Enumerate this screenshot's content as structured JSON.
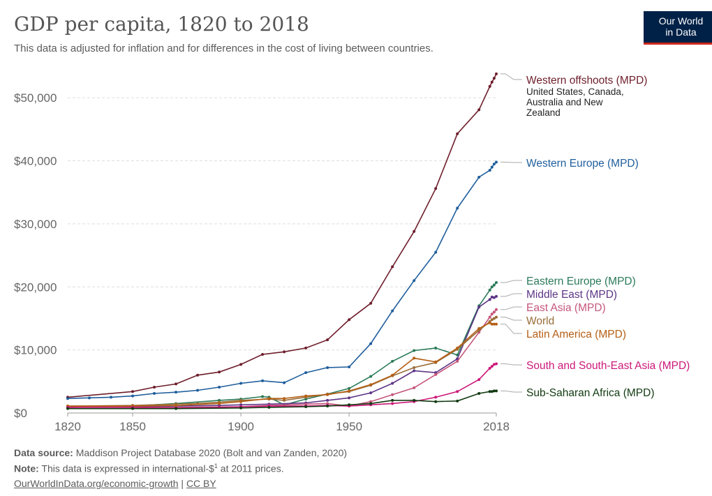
{
  "header": {
    "title": "GDP per capita, 1820 to 2018",
    "subtitle": "This data is adjusted for inflation and for differences in the cost of living between countries."
  },
  "logo": {
    "line1": "Our World",
    "line2": "in Data"
  },
  "footer": {
    "source_label": "Data source:",
    "source_text": "Maddison Project Database 2020 (Bolt and van Zanden, 2020)",
    "note_label": "Note:",
    "note_text_a": "This data is expressed in international-$",
    "note_sup": "1",
    "note_text_b": " at 2011 prices.",
    "link": "OurWorldInData.org/economic-growth",
    "separator": " | ",
    "license": "CC BY"
  },
  "chart_data": {
    "type": "line",
    "xlim": [
      1820,
      2018
    ],
    "ylim": [
      0,
      55000
    ],
    "x_ticks": [
      1820,
      1850,
      1900,
      1950,
      2018
    ],
    "x_tick_labels": [
      "1820",
      "1850",
      "1900",
      "1950",
      "2018"
    ],
    "y_ticks": [
      0,
      10000,
      20000,
      30000,
      40000,
      50000
    ],
    "y_tick_labels": [
      "$0",
      "$10,000",
      "$20,000",
      "$30,000",
      "$40,000",
      "$50,000"
    ],
    "grid": "horizontal dashed",
    "legend": "right, labels at line ends",
    "series": [
      {
        "name": "Western offshoots (MPD)",
        "sublabel": [
          "United States, Canada,",
          "Australia and New",
          "Zealand"
        ],
        "color": "#6d1e2b",
        "points": [
          [
            1820,
            2500
          ],
          [
            1850,
            3400
          ],
          [
            1860,
            4100
          ],
          [
            1870,
            4600
          ],
          [
            1880,
            6000
          ],
          [
            1890,
            6500
          ],
          [
            1900,
            7700
          ],
          [
            1910,
            9300
          ],
          [
            1920,
            9700
          ],
          [
            1930,
            10300
          ],
          [
            1940,
            11600
          ],
          [
            1950,
            14800
          ],
          [
            1960,
            17400
          ],
          [
            1970,
            23200
          ],
          [
            1980,
            28800
          ],
          [
            1990,
            35600
          ],
          [
            2000,
            44300
          ],
          [
            2010,
            48100
          ],
          [
            2015,
            51800
          ],
          [
            2016,
            52500
          ],
          [
            2017,
            53100
          ],
          [
            2018,
            53800
          ]
        ]
      },
      {
        "name": "Western Europe (MPD)",
        "color": "#1f5e9c",
        "points": [
          [
            1820,
            2300
          ],
          [
            1830,
            2400
          ],
          [
            1840,
            2500
          ],
          [
            1850,
            2700
          ],
          [
            1860,
            3100
          ],
          [
            1870,
            3300
          ],
          [
            1880,
            3600
          ],
          [
            1890,
            4100
          ],
          [
            1900,
            4700
          ],
          [
            1910,
            5100
          ],
          [
            1920,
            4800
          ],
          [
            1930,
            6400
          ],
          [
            1940,
            7200
          ],
          [
            1950,
            7300
          ],
          [
            1960,
            11000
          ],
          [
            1970,
            16200
          ],
          [
            1980,
            21000
          ],
          [
            1990,
            25500
          ],
          [
            2000,
            32500
          ],
          [
            2010,
            37400
          ],
          [
            2015,
            38500
          ],
          [
            2016,
            39000
          ],
          [
            2017,
            39500
          ],
          [
            2018,
            39800
          ]
        ]
      },
      {
        "name": "Eastern Europe (MPD)",
        "color": "#2a7a59",
        "points": [
          [
            1820,
            900
          ],
          [
            1850,
            1100
          ],
          [
            1870,
            1500
          ],
          [
            1890,
            2000
          ],
          [
            1900,
            2200
          ],
          [
            1910,
            2600
          ],
          [
            1913,
            2500
          ],
          [
            1920,
            1300
          ],
          [
            1930,
            2200
          ],
          [
            1940,
            3000
          ],
          [
            1950,
            3900
          ],
          [
            1960,
            5800
          ],
          [
            1970,
            8200
          ],
          [
            1980,
            9900
          ],
          [
            1990,
            10300
          ],
          [
            2000,
            9200
          ],
          [
            2010,
            17000
          ],
          [
            2015,
            19500
          ],
          [
            2016,
            20000
          ],
          [
            2017,
            20300
          ],
          [
            2018,
            20700
          ]
        ]
      },
      {
        "name": "Middle East (MPD)",
        "color": "#5d3586",
        "points": [
          [
            1820,
            900
          ],
          [
            1850,
            1000
          ],
          [
            1870,
            1100
          ],
          [
            1890,
            1200
          ],
          [
            1900,
            1300
          ],
          [
            1913,
            1400
          ],
          [
            1930,
            1600
          ],
          [
            1940,
            2000
          ],
          [
            1950,
            2400
          ],
          [
            1960,
            3200
          ],
          [
            1970,
            4700
          ],
          [
            1980,
            6700
          ],
          [
            1990,
            6400
          ],
          [
            2000,
            8600
          ],
          [
            2010,
            16800
          ],
          [
            2015,
            18000
          ],
          [
            2016,
            18400
          ],
          [
            2017,
            18300
          ],
          [
            2018,
            18500
          ]
        ]
      },
      {
        "name": "East Asia (MPD)",
        "color": "#c5567a",
        "points": [
          [
            1820,
            1000
          ],
          [
            1850,
            900
          ],
          [
            1870,
            900
          ],
          [
            1900,
            1000
          ],
          [
            1913,
            1200
          ],
          [
            1930,
            1400
          ],
          [
            1940,
            1500
          ],
          [
            1950,
            1100
          ],
          [
            1960,
            1800
          ],
          [
            1970,
            2900
          ],
          [
            1980,
            4000
          ],
          [
            1990,
            6100
          ],
          [
            2000,
            8200
          ],
          [
            2010,
            12800
          ],
          [
            2015,
            15200
          ],
          [
            2016,
            15700
          ],
          [
            2017,
            16000
          ],
          [
            2018,
            16400
          ]
        ]
      },
      {
        "name": "World",
        "color": "#996d38",
        "points": [
          [
            1820,
            1100
          ],
          [
            1850,
            1200
          ],
          [
            1870,
            1400
          ],
          [
            1880,
            1500
          ],
          [
            1890,
            1700
          ],
          [
            1900,
            2000
          ],
          [
            1913,
            2200
          ],
          [
            1920,
            2000
          ],
          [
            1930,
            2500
          ],
          [
            1940,
            3000
          ],
          [
            1950,
            3400
          ],
          [
            1960,
            4400
          ],
          [
            1970,
            5900
          ],
          [
            1980,
            7200
          ],
          [
            1990,
            8000
          ],
          [
            2000,
            10100
          ],
          [
            2010,
            13100
          ],
          [
            2015,
            14500
          ],
          [
            2016,
            14800
          ],
          [
            2017,
            15000
          ],
          [
            2018,
            15200
          ]
        ]
      },
      {
        "name": "Latin America (MPD)",
        "color": "#b55f15",
        "points": [
          [
            1820,
            1100
          ],
          [
            1850,
            1100
          ],
          [
            1870,
            1200
          ],
          [
            1890,
            1500
          ],
          [
            1900,
            1800
          ],
          [
            1913,
            2300
          ],
          [
            1920,
            2300
          ],
          [
            1930,
            2700
          ],
          [
            1940,
            2900
          ],
          [
            1950,
            3500
          ],
          [
            1960,
            4500
          ],
          [
            1970,
            6000
          ],
          [
            1980,
            8700
          ],
          [
            1990,
            8100
          ],
          [
            2000,
            10300
          ],
          [
            2010,
            13400
          ],
          [
            2015,
            14300
          ],
          [
            2016,
            14100
          ],
          [
            2017,
            14100
          ],
          [
            2018,
            14100
          ]
        ]
      },
      {
        "name": "South and South-East Asia (MPD)",
        "color": "#cc1879",
        "points": [
          [
            1820,
            900
          ],
          [
            1850,
            900
          ],
          [
            1870,
            800
          ],
          [
            1890,
            900
          ],
          [
            1900,
            1000
          ],
          [
            1913,
            1100
          ],
          [
            1930,
            1100
          ],
          [
            1940,
            1200
          ],
          [
            1950,
            1100
          ],
          [
            1960,
            1300
          ],
          [
            1970,
            1500
          ],
          [
            1980,
            1800
          ],
          [
            1990,
            2500
          ],
          [
            2000,
            3400
          ],
          [
            2010,
            5300
          ],
          [
            2015,
            7100
          ],
          [
            2016,
            7400
          ],
          [
            2017,
            7700
          ],
          [
            2018,
            7800
          ]
        ]
      },
      {
        "name": "Sub-Saharan Africa (MPD)",
        "color": "#123a12",
        "points": [
          [
            1820,
            700
          ],
          [
            1850,
            700
          ],
          [
            1870,
            700
          ],
          [
            1900,
            800
          ],
          [
            1913,
            900
          ],
          [
            1930,
            1000
          ],
          [
            1940,
            1100
          ],
          [
            1950,
            1300
          ],
          [
            1960,
            1500
          ],
          [
            1970,
            2000
          ],
          [
            1980,
            2000
          ],
          [
            1990,
            1800
          ],
          [
            2000,
            1900
          ],
          [
            2010,
            3100
          ],
          [
            2015,
            3400
          ],
          [
            2016,
            3400
          ],
          [
            2017,
            3500
          ],
          [
            2018,
            3500
          ]
        ]
      }
    ]
  }
}
